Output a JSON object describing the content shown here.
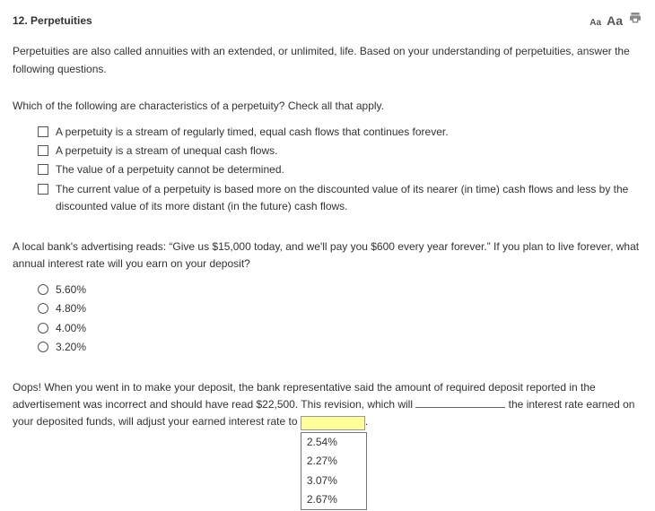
{
  "header": {
    "number_title": "12. Perpetuities",
    "aa_small": "Aa",
    "aa_large": "Aa"
  },
  "intro": "Perpetuities are also called annuities with an extended, or unlimited, life. Based on your understanding of perpetuities, answer the following questions.",
  "q1": {
    "prompt": "Which of the following are characteristics of a perpetuity? Check all that apply.",
    "options": [
      "A perpetuity is a stream of regularly timed, equal cash flows that continues forever.",
      "A perpetuity is a stream of unequal cash flows.",
      "The value of a perpetuity cannot be determined.",
      "The current value of a perpetuity is based more on the discounted value of its nearer (in time) cash flows and less by the discounted value of its more distant (in the future) cash flows."
    ]
  },
  "q2": {
    "prompt": "A local bank's advertising reads: “Give us $15,000 today, and we'll pay you $600 every year forever.” If you plan to live forever, what annual interest rate will you earn on your deposit?",
    "options": [
      "5.60%",
      "4.80%",
      "4.00%",
      "3.20%"
    ]
  },
  "q3": {
    "text_1": "Oops! When you went in to make your deposit, the bank representative said the amount of required deposit reported in the advertisement was incorrect and should have read $22,500. This revision, which will ",
    "text_2": " the interest rate earned on your deposited funds, will adjust your earned interest rate to ",
    "text_3": ".",
    "dropdown_options": [
      "2.54%",
      "2.27%",
      "3.07%",
      "2.67%"
    ]
  },
  "colors": {
    "highlight": "#ffff99",
    "border": "#777777"
  }
}
